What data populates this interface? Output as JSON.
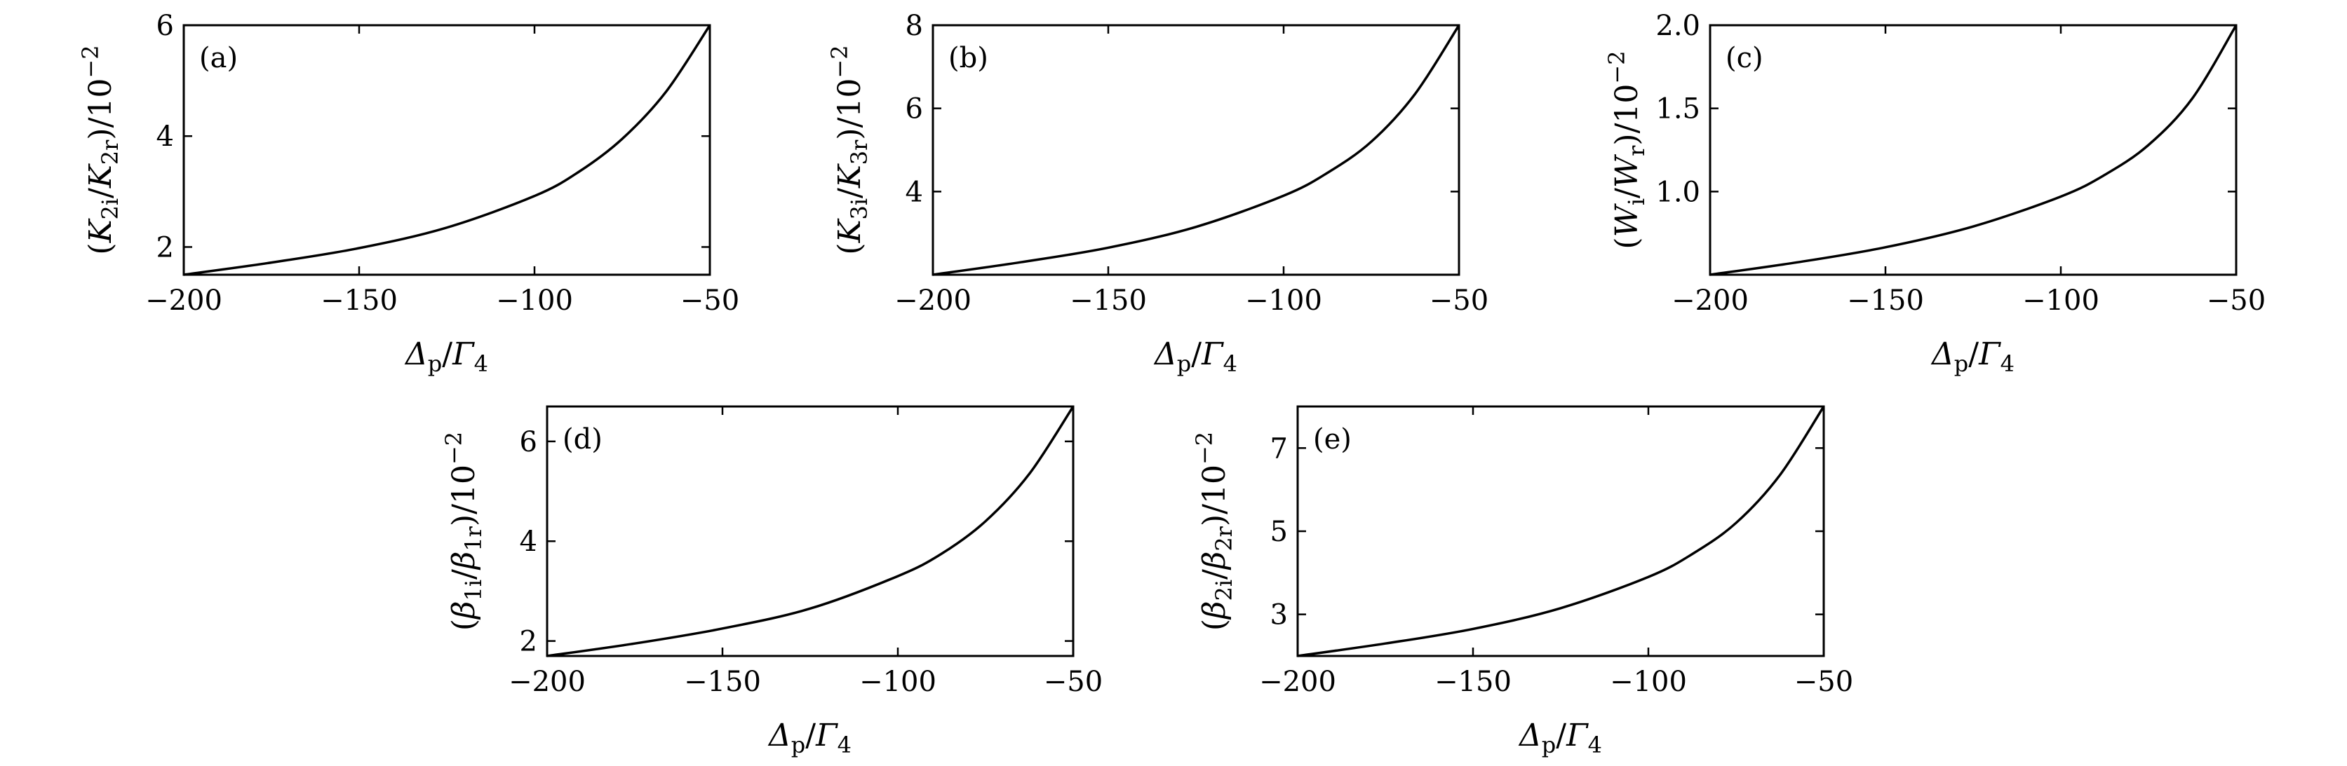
{
  "chart_data": [
    {
      "type": "line",
      "panel_label": "(a)",
      "xlabel": "Δp/Γ4",
      "ylabel": "(K2i/K2r)/10−2",
      "xlim": [
        -200,
        -50
      ],
      "ylim": [
        1.5,
        6
      ],
      "xticks": [
        -200,
        -150,
        -100,
        -50
      ],
      "xtick_labels": [
        "−200",
        "−150",
        "−100",
        "−50"
      ],
      "yticks": [
        2,
        4,
        6
      ],
      "ytick_labels": [
        "2",
        "4",
        "6"
      ],
      "series": [
        {
          "x": [
            -200,
            -175,
            -150,
            -125,
            -100,
            -87.5,
            -75,
            -62.5,
            -50
          ],
          "y": [
            1.5,
            1.72,
            1.98,
            2.35,
            2.92,
            3.35,
            3.95,
            4.8,
            6.0
          ]
        }
      ]
    },
    {
      "type": "line",
      "panel_label": "(b)",
      "xlabel": "Δp/Γ4",
      "ylabel": "(K3i/K3r)/10−2",
      "xlim": [
        -200,
        -50
      ],
      "ylim": [
        2,
        8
      ],
      "xticks": [
        -200,
        -150,
        -100,
        -50
      ],
      "xtick_labels": [
        "−200",
        "−150",
        "−100",
        "−50"
      ],
      "yticks": [
        4,
        6,
        8
      ],
      "ytick_labels": [
        "4",
        "6",
        "8"
      ],
      "series": [
        {
          "x": [
            -200,
            -175,
            -150,
            -125,
            -100,
            -87.5,
            -75,
            -62.5,
            -50
          ],
          "y": [
            2.0,
            2.3,
            2.65,
            3.15,
            3.9,
            4.45,
            5.2,
            6.35,
            8.0
          ]
        }
      ]
    },
    {
      "type": "line",
      "panel_label": "(c)",
      "xlabel": "Δp/Γ4",
      "ylabel": "(Wi/Wr)/10−2",
      "xlim": [
        -200,
        -50
      ],
      "ylim": [
        0.5,
        2.0
      ],
      "xticks": [
        -200,
        -150,
        -100,
        -50
      ],
      "xtick_labels": [
        "−200",
        "−150",
        "−100",
        "−50"
      ],
      "yticks": [
        1.0,
        1.5,
        2.0
      ],
      "ytick_labels": [
        "1.0",
        "1.5",
        "2.0"
      ],
      "series": [
        {
          "x": [
            -200,
            -175,
            -150,
            -125,
            -100,
            -87.5,
            -75,
            -62.5,
            -50
          ],
          "y": [
            0.5,
            0.575,
            0.665,
            0.79,
            0.97,
            1.1,
            1.28,
            1.56,
            2.0
          ]
        }
      ]
    },
    {
      "type": "line",
      "panel_label": "(d)",
      "xlabel": "Δp/Γ4",
      "ylabel": "(β1i/β1r)/10−2",
      "xlim": [
        -200,
        -50
      ],
      "ylim": [
        1.7,
        6.7
      ],
      "xticks": [
        -200,
        -150,
        -100,
        -50
      ],
      "xtick_labels": [
        "−200",
        "−150",
        "−100",
        "−50"
      ],
      "yticks": [
        2,
        4,
        6
      ],
      "ytick_labels": [
        "2",
        "4",
        "6"
      ],
      "series": [
        {
          "x": [
            -200,
            -175,
            -150,
            -125,
            -100,
            -87.5,
            -75,
            -62.5,
            -50
          ],
          "y": [
            1.7,
            1.95,
            2.25,
            2.65,
            3.3,
            3.75,
            4.4,
            5.35,
            6.7
          ]
        }
      ]
    },
    {
      "type": "line",
      "panel_label": "(e)",
      "xlabel": "Δp/Γ4",
      "ylabel": "(β2i/β2r)/10−2",
      "xlim": [
        -200,
        -50
      ],
      "ylim": [
        2,
        8
      ],
      "xticks": [
        -200,
        -150,
        -100,
        -50
      ],
      "xtick_labels": [
        "−200",
        "−150",
        "−100",
        "−50"
      ],
      "yticks": [
        3,
        5,
        7
      ],
      "ytick_labels": [
        "3",
        "5",
        "7"
      ],
      "series": [
        {
          "x": [
            -200,
            -175,
            -150,
            -125,
            -100,
            -87.5,
            -75,
            -62.5,
            -50
          ],
          "y": [
            2.0,
            2.3,
            2.65,
            3.15,
            3.9,
            4.45,
            5.2,
            6.35,
            8.0
          ]
        }
      ]
    }
  ]
}
